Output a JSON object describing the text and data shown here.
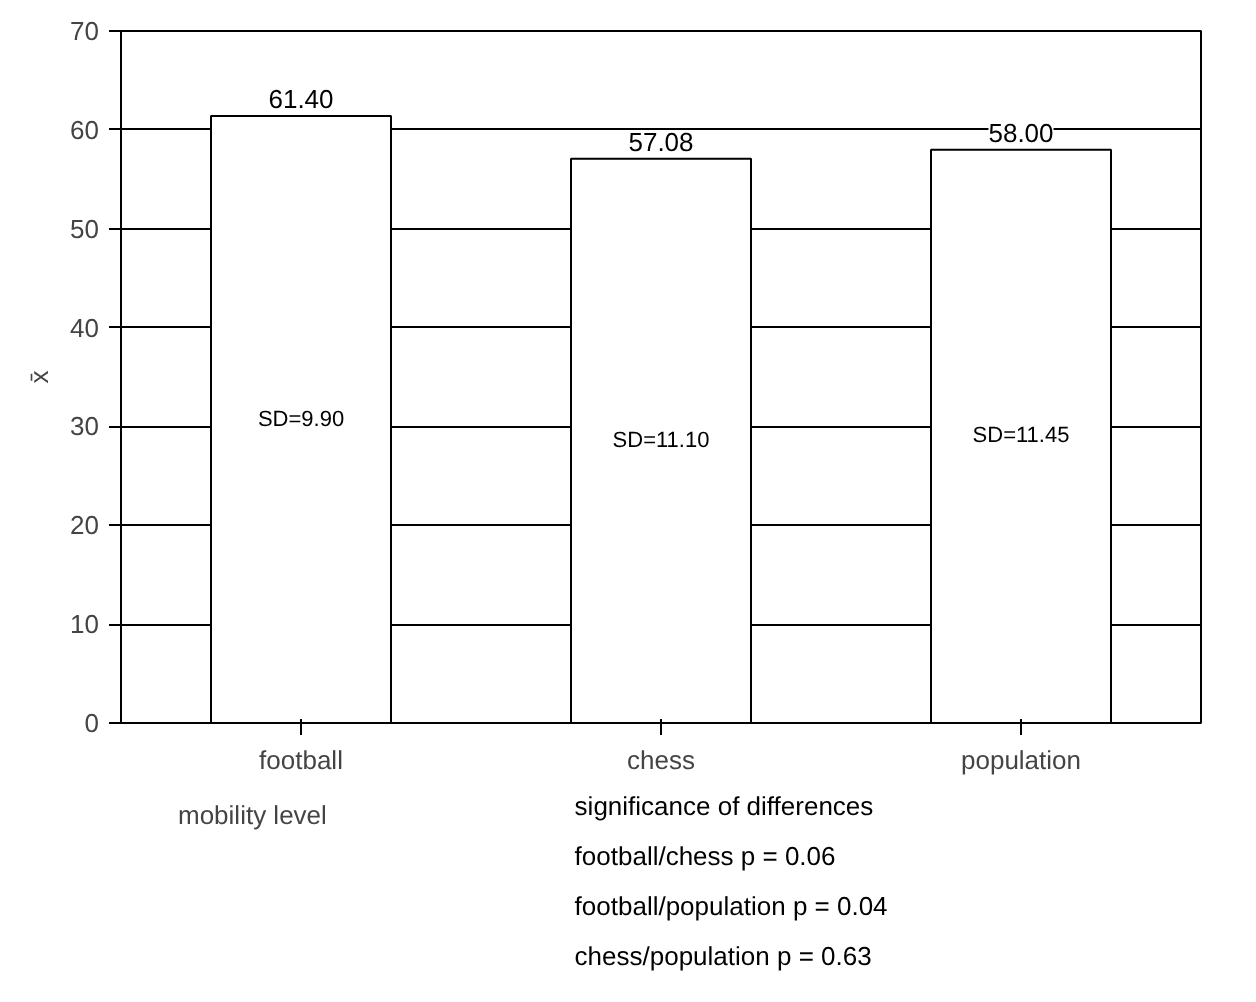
{
  "chart_data": {
    "type": "bar",
    "ylabel": "x̄",
    "categories": [
      "football",
      "chess",
      "population"
    ],
    "series": [
      {
        "name": "mobility level",
        "color": "#ffffff",
        "values": [
          61.4,
          57.08,
          58.0
        ]
      }
    ],
    "value_labels": [
      "61.40",
      "57.08",
      "58.00"
    ],
    "ylim": [
      0,
      70
    ],
    "yticks": [
      0,
      10,
      20,
      30,
      40,
      50,
      60,
      70
    ],
    "grid": "y",
    "legend": "bottom left",
    "annotations": [
      "SD=9.90",
      "SD=11.10",
      "SD=11.45",
      "significance of differences",
      "football/chess        p = 0.06",
      "football/population  p = 0.04",
      "chess/population      p = 0.63"
    ]
  }
}
